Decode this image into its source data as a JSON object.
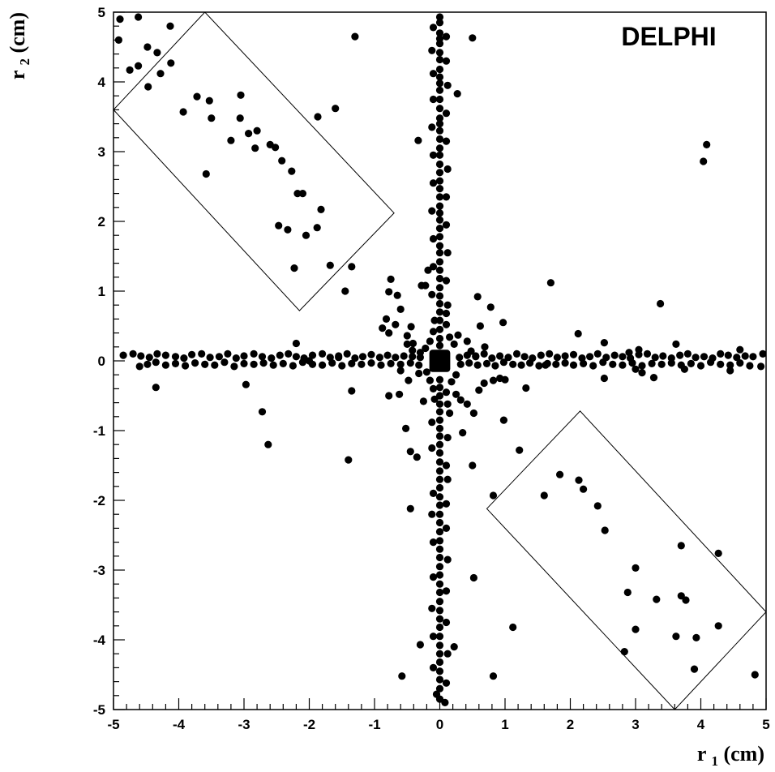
{
  "chart_data": {
    "type": "scatter",
    "title": "",
    "annotation": "DELPHI",
    "xlabel": {
      "main": "r",
      "sub": "1",
      "unit": "(cm)"
    },
    "ylabel": {
      "main": "r",
      "sub": "2",
      "unit": "(cm)"
    },
    "xlim": [
      -5,
      5
    ],
    "ylim": [
      -5,
      5
    ],
    "xticks": [
      -5,
      -4,
      -3,
      -2,
      -1,
      0,
      1,
      2,
      3,
      4,
      5
    ],
    "yticks": [
      -5,
      -4,
      -3,
      -2,
      -1,
      0,
      1,
      2,
      3,
      4,
      5
    ],
    "grid": false,
    "marker_color": "#000000",
    "selection_regions": [
      {
        "name": "upper-left-box",
        "corners": [
          [
            -5.0,
            3.6
          ],
          [
            -3.6,
            5.0
          ],
          [
            -0.7,
            2.12
          ],
          [
            -2.15,
            0.72
          ]
        ]
      },
      {
        "name": "lower-right-box",
        "corners": [
          [
            0.72,
            -2.12
          ],
          [
            2.15,
            -0.72
          ],
          [
            5.0,
            -3.6
          ],
          [
            3.6,
            -5.0
          ]
        ]
      }
    ],
    "central_blob": {
      "x": 0,
      "y": 0,
      "half_width": 0.16
    },
    "points": [
      [
        -4.9,
        4.9
      ],
      [
        -4.62,
        4.93
      ],
      [
        -4.92,
        4.6
      ],
      [
        -4.48,
        4.5
      ],
      [
        -4.75,
        4.17
      ],
      [
        -4.62,
        4.23
      ],
      [
        -4.33,
        4.42
      ],
      [
        -4.28,
        4.12
      ],
      [
        -4.13,
        4.8
      ],
      [
        -4.12,
        4.27
      ],
      [
        -4.47,
        3.93
      ],
      [
        -3.72,
        3.79
      ],
      [
        -3.53,
        3.73
      ],
      [
        -3.93,
        3.57
      ],
      [
        -3.5,
        3.48
      ],
      [
        -3.05,
        3.81
      ],
      [
        -3.06,
        3.48
      ],
      [
        -3.2,
        3.16
      ],
      [
        -2.8,
        3.3
      ],
      [
        -2.93,
        3.26
      ],
      [
        -2.83,
        3.05
      ],
      [
        -2.6,
        3.1
      ],
      [
        -2.52,
        3.06
      ],
      [
        -2.42,
        2.87
      ],
      [
        -2.27,
        2.72
      ],
      [
        -2.18,
        2.4
      ],
      [
        -2.1,
        2.4
      ],
      [
        -1.82,
        2.17
      ],
      [
        -1.87,
        3.5
      ],
      [
        -2.47,
        1.94
      ],
      [
        -2.33,
        1.88
      ],
      [
        -2.05,
        1.8
      ],
      [
        -1.88,
        1.91
      ],
      [
        -2.23,
        1.33
      ],
      [
        -1.68,
        1.37
      ],
      [
        -1.35,
        1.35
      ],
      [
        -3.58,
        2.68
      ],
      [
        -1.6,
        3.62
      ],
      [
        -1.3,
        4.65
      ],
      [
        -1.45,
        1.0
      ],
      [
        -0.75,
        1.17
      ],
      [
        -0.65,
        0.94
      ],
      [
        -0.78,
        0.99
      ],
      [
        -0.6,
        0.74
      ],
      [
        -0.82,
        0.6
      ],
      [
        -0.68,
        0.52
      ],
      [
        -0.88,
        0.47
      ],
      [
        -0.44,
        0.49
      ],
      [
        -0.5,
        0.36
      ],
      [
        -0.41,
        0.25
      ],
      [
        -0.78,
        0.4
      ],
      [
        -0.22,
        1.08
      ],
      [
        -0.18,
        1.3
      ],
      [
        -0.28,
        1.08
      ],
      [
        0.42,
        0.28
      ],
      [
        0.62,
        0.5
      ],
      [
        0.58,
        0.92
      ],
      [
        0.78,
        0.77
      ],
      [
        0.97,
        0.55
      ],
      [
        0.48,
        0.14
      ],
      [
        0.55,
        0.07
      ],
      [
        0.69,
        0.2
      ],
      [
        0.28,
        0.37
      ],
      [
        2.12,
        0.39
      ],
      [
        1.7,
        1.12
      ],
      [
        3.38,
        0.82
      ],
      [
        4.09,
        3.1
      ],
      [
        4.04,
        2.86
      ],
      [
        0.5,
        4.63
      ],
      [
        -0.33,
        3.16
      ],
      [
        0.27,
        3.83
      ],
      [
        -4.35,
        -0.38
      ],
      [
        -2.97,
        -0.34
      ],
      [
        -2.72,
        -0.73
      ],
      [
        -2.63,
        -1.2
      ],
      [
        -1.35,
        -0.43
      ],
      [
        -1.4,
        -1.42
      ],
      [
        -0.78,
        -0.5
      ],
      [
        -0.62,
        -0.48
      ],
      [
        -0.52,
        -0.97
      ],
      [
        -0.25,
        -0.58
      ],
      [
        -0.48,
        -0.28
      ],
      [
        -0.32,
        -0.18
      ],
      [
        -0.45,
        -1.3
      ],
      [
        -0.35,
        -1.38
      ],
      [
        -0.45,
        -2.12
      ],
      [
        -0.3,
        -4.07
      ],
      [
        0.25,
        -0.48
      ],
      [
        0.32,
        -0.56
      ],
      [
        0.42,
        -0.62
      ],
      [
        0.52,
        -0.75
      ],
      [
        0.35,
        -1.03
      ],
      [
        0.6,
        -0.42
      ],
      [
        0.68,
        -0.32
      ],
      [
        0.82,
        -0.28
      ],
      [
        0.92,
        -0.25
      ],
      [
        0.98,
        -0.85
      ],
      [
        1.0,
        -0.27
      ],
      [
        1.32,
        -0.39
      ],
      [
        0.5,
        -1.5
      ],
      [
        1.22,
        -1.28
      ],
      [
        0.82,
        -1.93
      ],
      [
        0.52,
        -3.11
      ],
      [
        1.12,
        -3.82
      ],
      [
        0.82,
        -4.52
      ],
      [
        -0.58,
        -4.52
      ],
      [
        0.22,
        -4.1
      ],
      [
        1.6,
        -1.93
      ],
      [
        1.84,
        -1.63
      ],
      [
        2.13,
        -1.71
      ],
      [
        2.2,
        -1.84
      ],
      [
        2.42,
        -2.08
      ],
      [
        2.53,
        -2.43
      ],
      [
        3.7,
        -2.65
      ],
      [
        4.27,
        -2.76
      ],
      [
        3.0,
        -2.97
      ],
      [
        2.88,
        -3.32
      ],
      [
        3.7,
        -3.37
      ],
      [
        3.77,
        -3.43
      ],
      [
        3.32,
        -3.42
      ],
      [
        4.27,
        -3.8
      ],
      [
        3.0,
        -3.85
      ],
      [
        3.62,
        -3.95
      ],
      [
        3.93,
        -3.97
      ],
      [
        2.83,
        -4.17
      ],
      [
        3.9,
        -4.42
      ],
      [
        4.83,
        -4.5
      ],
      [
        0,
        4.93
      ],
      [
        0,
        4.85
      ],
      [
        0,
        4.7
      ],
      [
        0,
        4.62
      ],
      [
        0,
        4.55
      ],
      [
        0,
        4.42
      ],
      [
        0,
        4.32
      ],
      [
        0,
        4.18
      ],
      [
        0,
        4.07
      ],
      [
        0,
        3.98
      ],
      [
        0,
        3.88
      ],
      [
        0,
        3.75
      ],
      [
        0,
        3.62
      ],
      [
        0,
        3.48
      ],
      [
        0,
        3.4
      ],
      [
        0,
        3.3
      ],
      [
        0,
        3.18
      ],
      [
        0,
        3.05
      ],
      [
        0,
        2.95
      ],
      [
        0,
        2.82
      ],
      [
        0,
        2.7
      ],
      [
        0,
        2.58
      ],
      [
        0,
        2.47
      ],
      [
        0,
        2.35
      ],
      [
        0,
        2.22
      ],
      [
        0,
        2.12
      ],
      [
        0,
        2.02
      ],
      [
        0,
        1.9
      ],
      [
        0,
        1.78
      ],
      [
        0,
        1.65
      ],
      [
        0,
        1.55
      ],
      [
        0,
        1.42
      ],
      [
        0,
        1.3
      ],
      [
        0,
        1.18
      ],
      [
        0,
        1.05
      ],
      [
        0,
        0.93
      ],
      [
        0,
        0.82
      ],
      [
        0,
        0.7
      ],
      [
        0,
        0.58
      ],
      [
        0,
        0.45
      ],
      [
        0,
        0.32
      ],
      [
        0,
        0.22
      ],
      [
        0,
        -0.27
      ],
      [
        0,
        -0.38
      ],
      [
        0,
        -0.5
      ],
      [
        0,
        -0.62
      ],
      [
        0,
        -0.73
      ],
      [
        0,
        -0.85
      ],
      [
        0,
        -0.97
      ],
      [
        0,
        -1.08
      ],
      [
        0,
        -1.2
      ],
      [
        0,
        -1.32
      ],
      [
        0,
        -1.45
      ],
      [
        0,
        -1.58
      ],
      [
        0,
        -1.7
      ],
      [
        0,
        -1.82
      ],
      [
        0,
        -1.95
      ],
      [
        0,
        -2.07
      ],
      [
        0,
        -2.2
      ],
      [
        0,
        -2.32
      ],
      [
        0,
        -2.45
      ],
      [
        0,
        -2.58
      ],
      [
        0,
        -2.7
      ],
      [
        0,
        -2.82
      ],
      [
        0,
        -2.95
      ],
      [
        0,
        -3.07
      ],
      [
        0,
        -3.2
      ],
      [
        0,
        -3.32
      ],
      [
        0,
        -3.45
      ],
      [
        0,
        -3.58
      ],
      [
        0,
        -3.7
      ],
      [
        0,
        -3.82
      ],
      [
        0,
        -3.95
      ],
      [
        0,
        -4.08
      ],
      [
        0,
        -4.2
      ],
      [
        0,
        -4.32
      ],
      [
        0,
        -4.45
      ],
      [
        0,
        -4.57
      ],
      [
        0,
        -4.7
      ],
      [
        0,
        -4.85
      ],
      [
        -4.85,
        0.08
      ],
      [
        -4.7,
        0.1
      ],
      [
        -4.58,
        0.07
      ],
      [
        -4.45,
        0.05
      ],
      [
        -4.33,
        0.1
      ],
      [
        -4.2,
        0.08
      ],
      [
        -4.05,
        0.06
      ],
      [
        -3.92,
        0.04
      ],
      [
        -3.8,
        0.09
      ],
      [
        -3.65,
        0.1
      ],
      [
        -3.52,
        0.05
      ],
      [
        -3.38,
        0.06
      ],
      [
        -3.25,
        0.1
      ],
      [
        -3.12,
        0.04
      ],
      [
        -3.0,
        0.07
      ],
      [
        -2.85,
        0.1
      ],
      [
        -2.72,
        0.06
      ],
      [
        -2.58,
        0.04
      ],
      [
        -2.45,
        0.08
      ],
      [
        -2.32,
        0.1
      ],
      [
        -2.2,
        0.06
      ],
      [
        -2.08,
        0.04
      ],
      [
        -1.95,
        0.08
      ],
      [
        -1.8,
        0.1
      ],
      [
        -1.68,
        0.05
      ],
      [
        -1.55,
        0.07
      ],
      [
        -1.42,
        0.1
      ],
      [
        -1.3,
        0.04
      ],
      [
        -1.18,
        0.06
      ],
      [
        -1.05,
        0.09
      ],
      [
        -0.92,
        0.05
      ],
      [
        -0.8,
        0.08
      ],
      [
        -0.68,
        0.05
      ],
      [
        -0.55,
        0.07
      ],
      [
        -0.42,
        0.06
      ],
      [
        -0.3,
        0.05
      ],
      [
        -4.6,
        -0.08
      ],
      [
        -4.48,
        -0.05
      ],
      [
        -4.35,
        -0.02
      ],
      [
        -4.2,
        -0.06
      ],
      [
        -4.05,
        -0.04
      ],
      [
        -3.9,
        -0.07
      ],
      [
        -3.75,
        -0.03
      ],
      [
        -3.6,
        -0.05
      ],
      [
        -3.45,
        -0.06
      ],
      [
        -3.3,
        -0.02
      ],
      [
        -3.15,
        -0.08
      ],
      [
        -3.0,
        -0.04
      ],
      [
        -2.85,
        -0.05
      ],
      [
        -2.7,
        -0.03
      ],
      [
        -2.55,
        -0.06
      ],
      [
        -2.4,
        -0.04
      ],
      [
        -2.25,
        -0.07
      ],
      [
        -2.1,
        -0.02
      ],
      [
        -1.95,
        -0.05
      ],
      [
        -1.8,
        -0.06
      ],
      [
        -1.65,
        -0.03
      ],
      [
        -1.5,
        -0.07
      ],
      [
        -1.35,
        -0.04
      ],
      [
        -1.2,
        -0.05
      ],
      [
        -1.05,
        -0.03
      ],
      [
        -0.9,
        -0.06
      ],
      [
        -0.75,
        -0.04
      ],
      [
        -0.6,
        -0.05
      ],
      [
        -0.45,
        -0.03
      ],
      [
        -0.32,
        -0.06
      ],
      [
        -0.6,
        -0.14
      ],
      [
        0.3,
        0.05
      ],
      [
        0.42,
        0.08
      ],
      [
        0.55,
        0.06
      ],
      [
        0.68,
        0.1
      ],
      [
        0.8,
        0.04
      ],
      [
        0.92,
        0.07
      ],
      [
        1.05,
        0.05
      ],
      [
        1.18,
        0.1
      ],
      [
        1.3,
        0.06
      ],
      [
        1.42,
        0.04
      ],
      [
        1.55,
        0.08
      ],
      [
        1.68,
        0.1
      ],
      [
        1.8,
        0.05
      ],
      [
        1.92,
        0.07
      ],
      [
        2.05,
        0.09
      ],
      [
        2.18,
        0.04
      ],
      [
        2.3,
        0.06
      ],
      [
        2.42,
        0.1
      ],
      [
        2.55,
        0.05
      ],
      [
        2.68,
        0.08
      ],
      [
        2.8,
        0.06
      ],
      [
        2.92,
        0.04
      ],
      [
        3.05,
        0.09
      ],
      [
        3.18,
        0.1
      ],
      [
        3.3,
        0.05
      ],
      [
        3.42,
        0.07
      ],
      [
        3.55,
        0.04
      ],
      [
        3.68,
        0.08
      ],
      [
        3.8,
        0.1
      ],
      [
        3.92,
        0.05
      ],
      [
        4.05,
        0.06
      ],
      [
        4.18,
        0.04
      ],
      [
        4.3,
        0.1
      ],
      [
        4.42,
        0.08
      ],
      [
        4.55,
        0.05
      ],
      [
        4.68,
        0.07
      ],
      [
        4.8,
        0.06
      ],
      [
        4.95,
        0.1
      ],
      [
        0.32,
        -0.05
      ],
      [
        0.45,
        -0.03
      ],
      [
        0.58,
        -0.06
      ],
      [
        0.72,
        -0.04
      ],
      [
        0.85,
        -0.07
      ],
      [
        0.98,
        -0.02
      ],
      [
        1.12,
        -0.05
      ],
      [
        1.25,
        -0.06
      ],
      [
        1.38,
        -0.03
      ],
      [
        1.52,
        -0.07
      ],
      [
        1.65,
        -0.04
      ],
      [
        1.78,
        -0.05
      ],
      [
        1.92,
        -0.03
      ],
      [
        2.05,
        -0.06
      ],
      [
        2.2,
        -0.04
      ],
      [
        2.35,
        -0.07
      ],
      [
        2.5,
        -0.02
      ],
      [
        2.65,
        -0.05
      ],
      [
        2.8,
        -0.06
      ],
      [
        2.95,
        -0.03
      ],
      [
        3.1,
        -0.07
      ],
      [
        3.25,
        -0.04
      ],
      [
        3.4,
        -0.05
      ],
      [
        3.55,
        -0.03
      ],
      [
        3.7,
        -0.06
      ],
      [
        3.85,
        -0.04
      ],
      [
        4.0,
        -0.07
      ],
      [
        4.15,
        -0.02
      ],
      [
        4.3,
        -0.05
      ],
      [
        4.45,
        -0.06
      ],
      [
        4.6,
        -0.03
      ],
      [
        4.75,
        -0.07
      ],
      [
        4.92,
        -0.08
      ],
      [
        2.52,
        0.26
      ],
      [
        2.52,
        -0.25
      ],
      [
        3.05,
        0.16
      ],
      [
        3.1,
        -0.17
      ],
      [
        3.28,
        -0.24
      ],
      [
        3.62,
        0.24
      ],
      [
        3.75,
        -0.12
      ],
      [
        4.45,
        -0.14
      ],
      [
        4.6,
        0.16
      ],
      [
        3.0,
        -0.12
      ],
      [
        2.9,
        0.12
      ],
      [
        1.62,
        -0.06
      ],
      [
        -0.5,
        0.24
      ],
      [
        -0.42,
        0.15
      ],
      [
        -0.3,
        0.12
      ],
      [
        -0.22,
        0.18
      ],
      [
        -0.15,
        0.28
      ],
      [
        -0.1,
        0.42
      ],
      [
        -0.08,
        0.58
      ],
      [
        0.1,
        0.52
      ],
      [
        0.15,
        0.34
      ],
      [
        0.22,
        0.24
      ],
      [
        0.1,
        0.68
      ],
      [
        0.12,
        0.8
      ],
      [
        -0.2,
        -0.16
      ],
      [
        -0.15,
        -0.28
      ],
      [
        -0.1,
        -0.4
      ],
      [
        -0.08,
        -0.55
      ],
      [
        0.1,
        -0.45
      ],
      [
        0.18,
        -0.3
      ],
      [
        0.25,
        -0.2
      ],
      [
        0.12,
        -0.62
      ],
      [
        0.15,
        -0.75
      ],
      [
        -0.12,
        -0.88
      ],
      [
        0.12,
        -1.1
      ],
      [
        -0.12,
        -1.25
      ],
      [
        0.1,
        -1.5
      ],
      [
        0.12,
        -1.7
      ],
      [
        -0.1,
        -1.9
      ],
      [
        0.1,
        -2.05
      ],
      [
        -0.12,
        -2.2
      ],
      [
        0.1,
        -2.4
      ],
      [
        -0.1,
        -2.6
      ],
      [
        0.12,
        -2.85
      ],
      [
        -0.1,
        -3.1
      ],
      [
        0.1,
        -3.3
      ],
      [
        -0.12,
        -3.55
      ],
      [
        0.1,
        -3.75
      ],
      [
        -0.1,
        -3.95
      ],
      [
        0.12,
        -4.2
      ],
      [
        -0.1,
        -4.4
      ],
      [
        0.1,
        -4.62
      ],
      [
        -0.05,
        -4.78
      ],
      [
        0.08,
        -4.9
      ],
      [
        -0.1,
        4.78
      ],
      [
        0.1,
        4.65
      ],
      [
        -0.12,
        4.45
      ],
      [
        0.1,
        4.3
      ],
      [
        -0.1,
        4.12
      ],
      [
        0.12,
        3.95
      ],
      [
        -0.1,
        3.75
      ],
      [
        0.1,
        3.55
      ],
      [
        -0.12,
        3.35
      ],
      [
        0.1,
        3.15
      ],
      [
        -0.1,
        2.95
      ],
      [
        0.12,
        2.75
      ],
      [
        -0.1,
        2.55
      ],
      [
        0.1,
        2.35
      ],
      [
        -0.12,
        2.15
      ],
      [
        0.1,
        1.95
      ],
      [
        -0.1,
        1.75
      ],
      [
        0.12,
        1.55
      ],
      [
        -0.1,
        1.35
      ],
      [
        0.1,
        1.15
      ],
      [
        -0.12,
        0.95
      ],
      [
        -2.2,
        0.25
      ],
      [
        -1.55,
        0.05
      ],
      [
        -2.0,
        0.0
      ]
    ]
  }
}
